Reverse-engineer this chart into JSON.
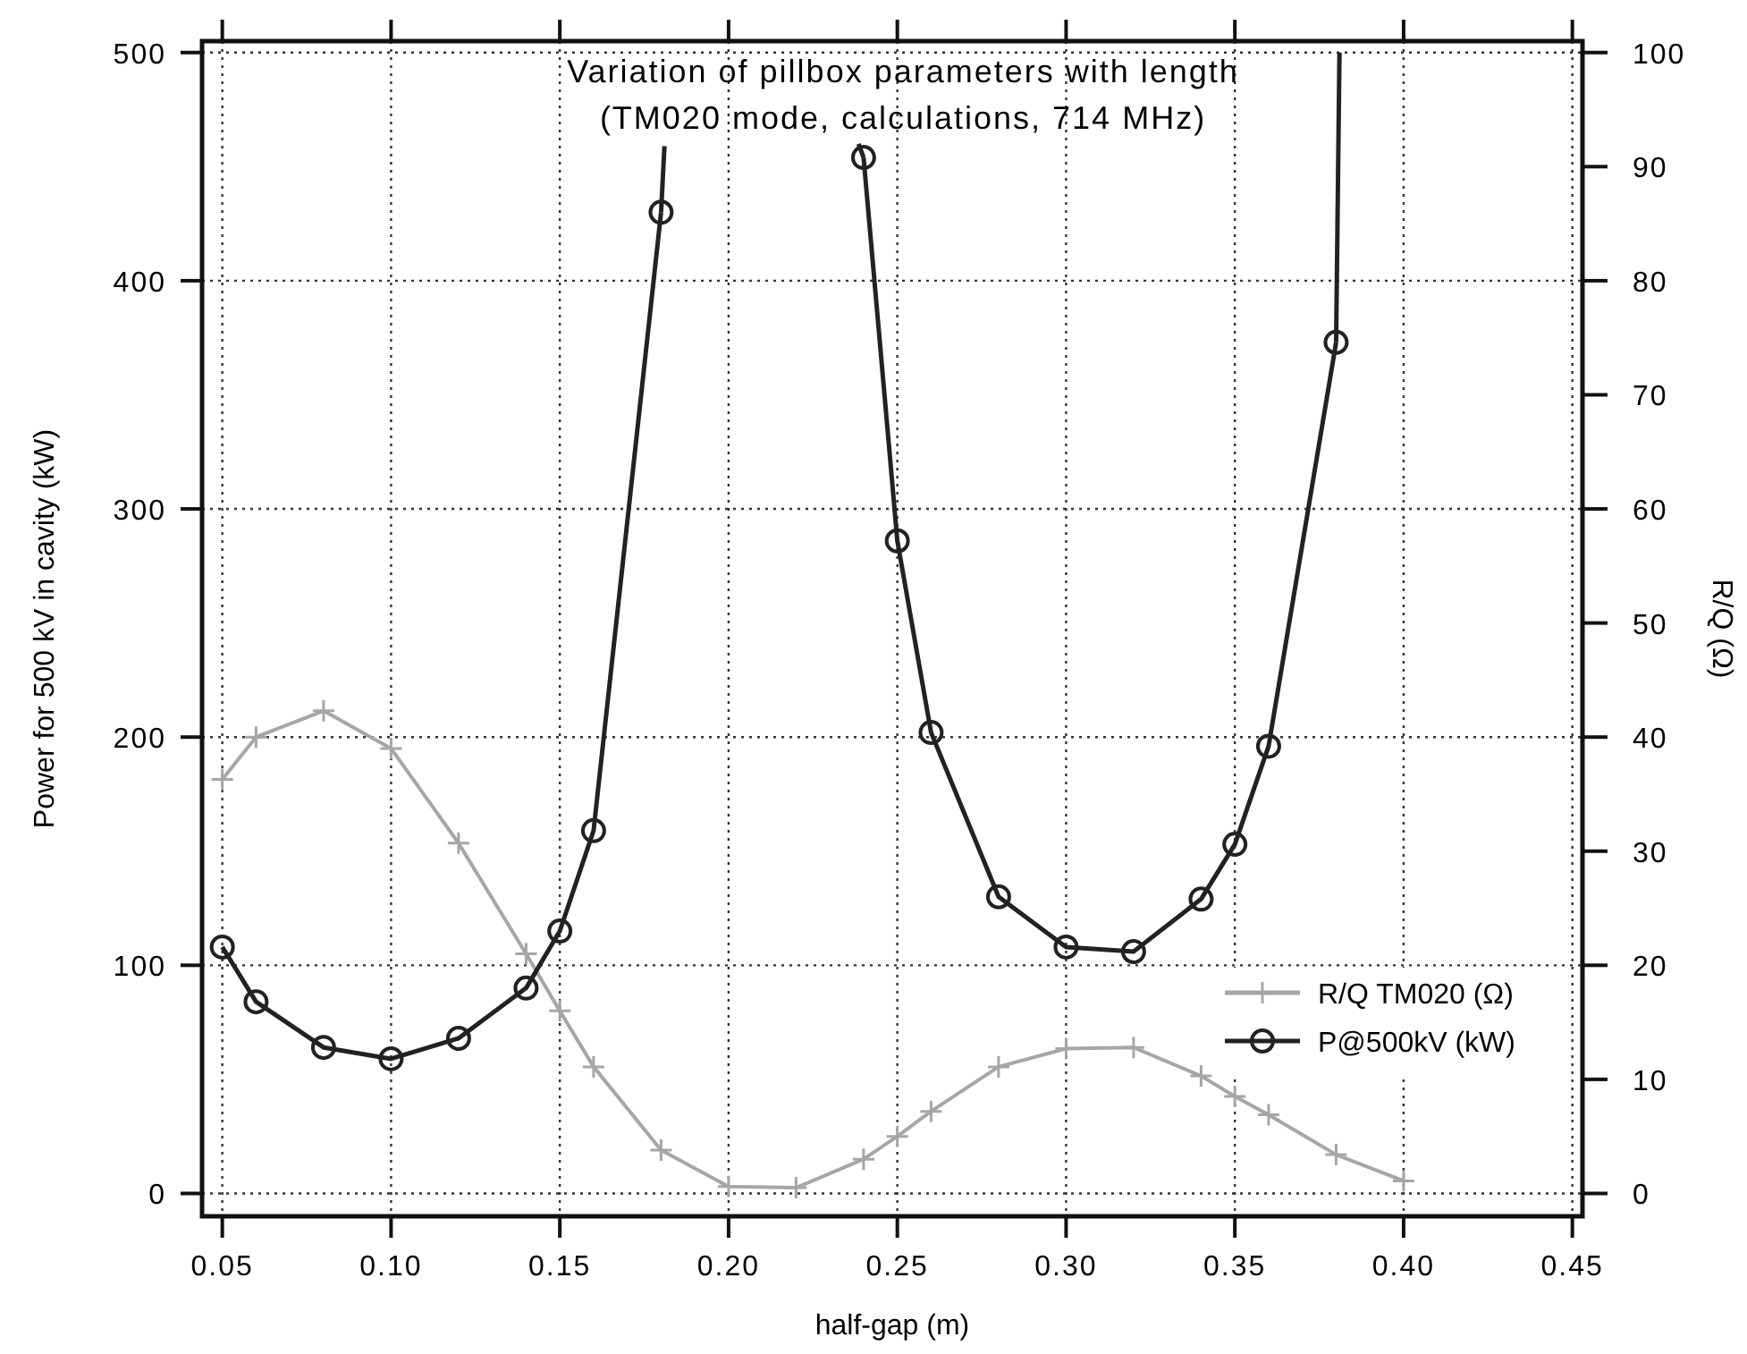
{
  "chart_data": {
    "type": "line",
    "title": "Variation of pillbox parameters with length",
    "subtitle": "(TM020 mode, calculations, 714 MHz)",
    "xlabel": "half-gap (m)",
    "ylabel": "Power for 500 kV in cavity (kW)",
    "y2label": "R/Q (Ω)",
    "xlim": [
      0.044,
      0.453
    ],
    "xticks": [
      {
        "value": 0.05,
        "label": "0.05"
      },
      {
        "value": 0.1,
        "label": "0.10"
      },
      {
        "value": 0.15,
        "label": "0.15"
      },
      {
        "value": 0.2,
        "label": "0.20"
      },
      {
        "value": 0.25,
        "label": "0.25"
      },
      {
        "value": 0.3,
        "label": "0.30"
      },
      {
        "value": 0.35,
        "label": "0.35"
      },
      {
        "value": 0.4,
        "label": "0.40"
      },
      {
        "value": 0.45,
        "label": "0.45"
      }
    ],
    "ylim": [
      -10,
      505
    ],
    "yticks": [
      0,
      100,
      200,
      300,
      400,
      500
    ],
    "y2lim": [
      -2,
      101
    ],
    "y2ticks": [
      0,
      10,
      20,
      30,
      40,
      50,
      60,
      70,
      80,
      90,
      100
    ],
    "grid": true,
    "legend": "bottom right",
    "line_style": "solid",
    "series": [
      {
        "name": "R/Q TM020 (Ω)",
        "color": "#a6a6a6",
        "axis": "y2",
        "marker": "cross",
        "x": [
          0.05,
          0.06,
          0.08,
          0.1,
          0.12,
          0.14,
          0.15,
          0.16,
          0.18,
          0.2,
          0.22,
          0.24,
          0.25,
          0.26,
          0.28,
          0.3,
          0.32,
          0.34,
          0.35,
          0.36,
          0.38,
          0.4
        ],
        "values": [
          36.3,
          40,
          42.3,
          39,
          30.7,
          21,
          16,
          11.1,
          3.8,
          0.6,
          0.5,
          3,
          5,
          7.2,
          11.1,
          12.7,
          12.8,
          10.3,
          8.5,
          6.9,
          3.4,
          1.1
        ]
      },
      {
        "name": "P@500kV (kW)",
        "color": "#222222",
        "marker": "circle",
        "x": [
          0.05,
          0.06,
          0.08,
          0.1,
          0.12,
          0.14,
          0.15,
          0.16,
          0.18,
          0.2,
          0.24,
          0.25,
          0.26,
          0.28,
          0.3,
          0.32,
          0.34,
          0.35,
          0.36,
          0.38
        ],
        "values": [
          108,
          84,
          64,
          59,
          68,
          90,
          115,
          159,
          430,
          null,
          454,
          286,
          202,
          130,
          108,
          106,
          129,
          153,
          196,
          373
        ]
      },
      {
        "color": "#222222",
        "marker": "none",
        "x": [
          0.18,
          0.181
        ],
        "values": [
          430,
          459
        ]
      },
      {
        "color": "#222222",
        "marker": "none",
        "x": [
          0.2385,
          0.24
        ],
        "values": [
          460,
          454
        ]
      },
      {
        "color": "#222222",
        "marker": "none",
        "x": [
          0.38,
          0.381
        ],
        "values": [
          373,
          500
        ]
      }
    ]
  }
}
